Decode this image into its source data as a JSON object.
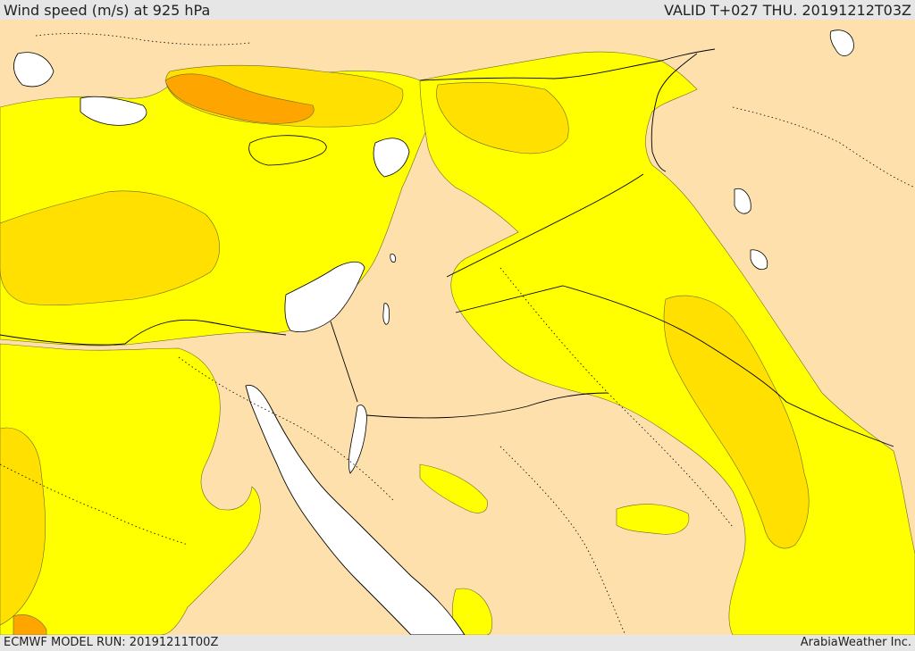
{
  "header": {
    "title": "Wind speed (m/s) at 925 hPa",
    "valid": "VALID T+027 THU. 20191212T03Z"
  },
  "footer": {
    "model_run": "ECMWF MODEL RUN: 20191211T00Z",
    "credit": "ArabiaWeather Inc."
  },
  "map": {
    "region": "Eastern Mediterranean and Middle East",
    "colors": {
      "water": "#ffffff",
      "calm": "#fde0ab",
      "moderate": "#ffff00",
      "fresh": "#ffe000",
      "strong": "#ffa500",
      "boundary": "#000000"
    }
  }
}
